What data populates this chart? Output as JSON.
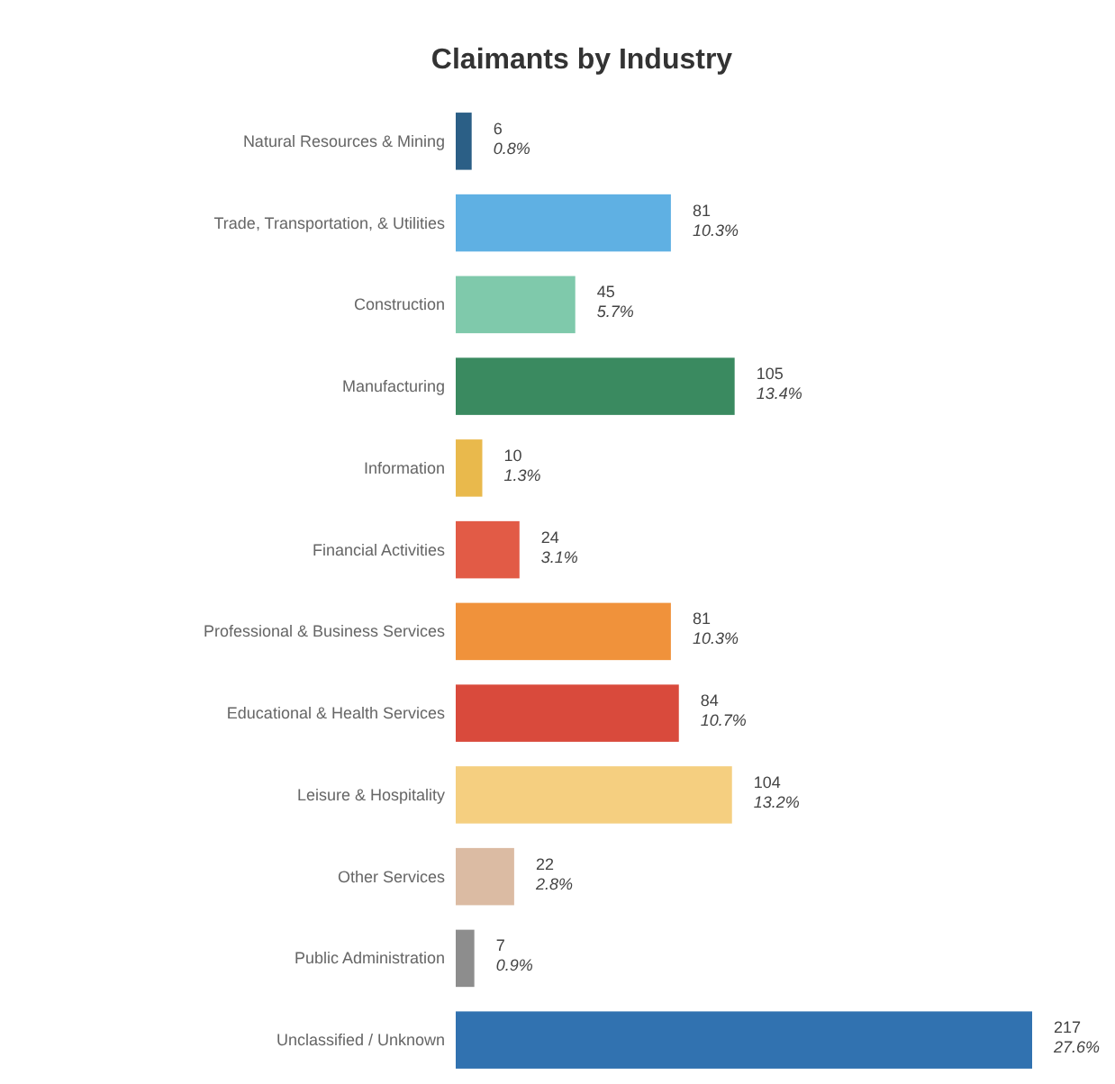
{
  "chart_data": {
    "type": "bar",
    "orientation": "horizontal",
    "title": "Claimants by Industry",
    "categories": [
      "Natural Resources & Mining",
      "Trade, Transportation, & Utilities",
      "Construction",
      "Manufacturing",
      "Information",
      "Financial Activities",
      "Professional & Business Services",
      "Educational  & Health Services",
      "Leisure & Hospitality",
      "Other Services",
      "Public Administration",
      "Unclassified / Unknown"
    ],
    "values": [
      6,
      81,
      45,
      105,
      10,
      24,
      81,
      84,
      104,
      22,
      7,
      217
    ],
    "colors": [
      "#2b5f86",
      "#5fb0e3",
      "#7fc9ab",
      "#3a8a60",
      "#e9b94c",
      "#e25b46",
      "#f0923b",
      "#d94a3c",
      "#f5cf80",
      "#dbbba3",
      "#8d8d8d",
      "#3172b0"
    ],
    "value_labels": [
      "6\n0.8%",
      "81\n10.3%",
      "45\n5.7%",
      "105\n13.4%",
      "10\n1.3%",
      "24\n3.1%",
      "81\n10.3%",
      "84\n10.7%",
      "104\n13.2%",
      "22\n2.8%",
      "7\n0.9%",
      "217\n27.6%"
    ]
  }
}
